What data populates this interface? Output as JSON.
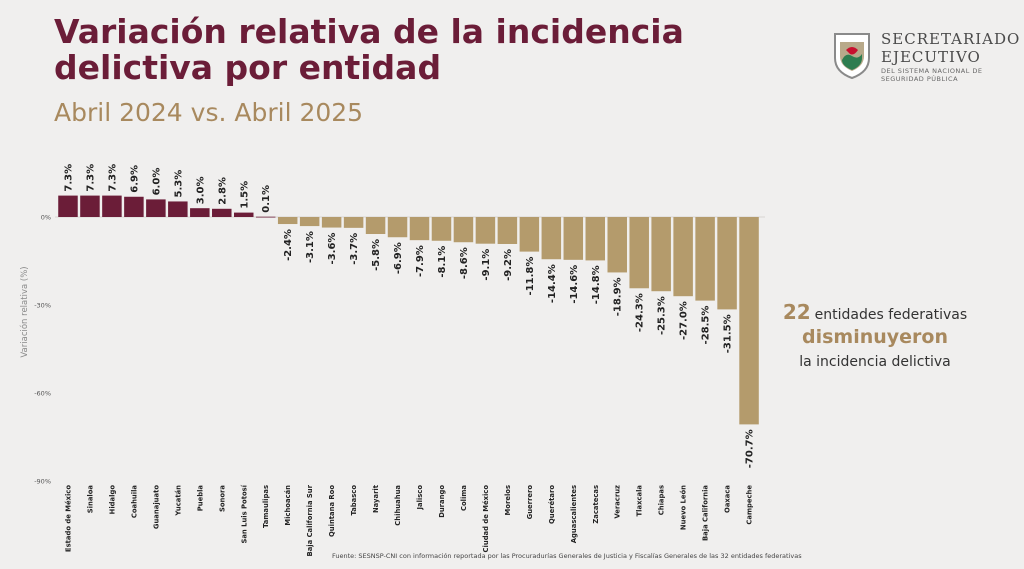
{
  "header": {
    "title": "Variación relativa de la incidencia delictiva por entidad",
    "subtitle": "Abril 2024 vs. Abril 2025"
  },
  "logo": {
    "line1": "SECRETARIADO",
    "line2": "EJECUTIVO",
    "line3": "DEL SISTEMA NACIONAL DE SEGURIDAD PÚBLICA"
  },
  "callout": {
    "number": "22",
    "text1": "entidades federativas",
    "text2": "disminuyeron",
    "text3": "la incidencia delictiva"
  },
  "footnote": "Fuente: SESNSP-CNI con información reportada por las Procuradurías Generales de Justicia y Fiscalías Generales de las 32 entidades federativas",
  "colors": {
    "increase": "#6b1d38",
    "decrease": "#b49b6c",
    "title": "#6b1d38",
    "accent": "#a8895e"
  },
  "chart_data": {
    "type": "bar",
    "ylabel": "Variación relativa (%)",
    "ylim": [
      -90,
      10
    ],
    "yticks": [
      0,
      -30,
      -60,
      -90
    ],
    "ytick_labels": [
      "0%",
      "-30%",
      "-60%",
      "-90%"
    ],
    "categories": [
      "Estado de México",
      "Sinaloa",
      "Hidalgo",
      "Coahuila",
      "Guanajuato",
      "Yucatán",
      "Puebla",
      "Sonora",
      "San Luis Potosí",
      "Tamaulipas",
      "Michoacán",
      "Baja California Sur",
      "Quintana Roo",
      "Tabasco",
      "Nayarit",
      "Chihuahua",
      "Jalisco",
      "Durango",
      "Colima",
      "Ciudad de México",
      "Morelos",
      "Guerrero",
      "Querétaro",
      "Aguascalientes",
      "Zacatecas",
      "Veracruz",
      "Tlaxcala",
      "Chiapas",
      "Nuevo León",
      "Baja California",
      "Oaxaca",
      "Campeche"
    ],
    "values": [
      7.3,
      7.3,
      7.3,
      6.9,
      6.0,
      5.3,
      3.0,
      2.8,
      1.5,
      0.1,
      -2.4,
      -3.1,
      -3.6,
      -3.7,
      -5.8,
      -6.9,
      -7.9,
      -8.1,
      -8.6,
      -9.1,
      -9.2,
      -11.8,
      -14.4,
      -14.6,
      -14.8,
      -18.9,
      -24.3,
      -25.3,
      -27.0,
      -28.5,
      -31.5,
      -70.7
    ],
    "labels": [
      "7.3%",
      "7.3%",
      "7.3%",
      "6.9%",
      "6.0%",
      "5.3%",
      "3.0%",
      "2.8%",
      "1.5%",
      "0.1%",
      "-2.4%",
      "-3.1%",
      "-3.6%",
      "-3.7%",
      "-5.8%",
      "-6.9%",
      "-7.9%",
      "-8.1%",
      "-8.6%",
      "-9.1%",
      "-9.2%",
      "-11.8%",
      "-14.4%",
      "-14.6%",
      "-14.8%",
      "-18.9%",
      "-24.3%",
      "-25.3%",
      "-27.0%",
      "-28.5%",
      "-31.5%",
      "-70.7%"
    ]
  }
}
